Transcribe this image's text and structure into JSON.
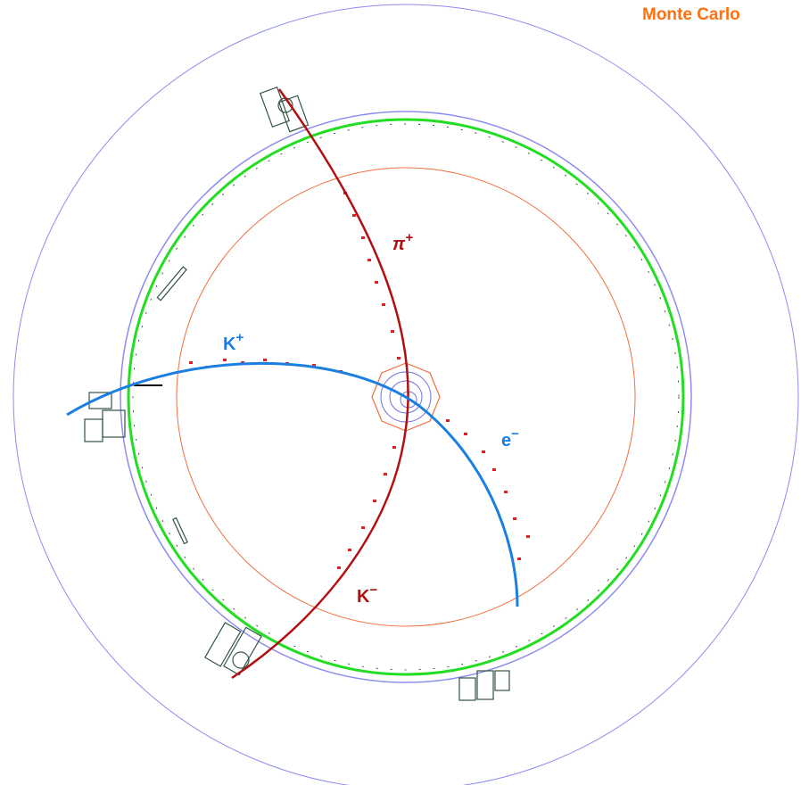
{
  "title": "Monte Carlo",
  "tracks": [
    {
      "symbol": "π",
      "charge": "+"
    },
    {
      "symbol": "K",
      "charge": "+"
    },
    {
      "symbol": "e",
      "charge": "−"
    },
    {
      "symbol": "K",
      "charge": "−"
    }
  ]
}
